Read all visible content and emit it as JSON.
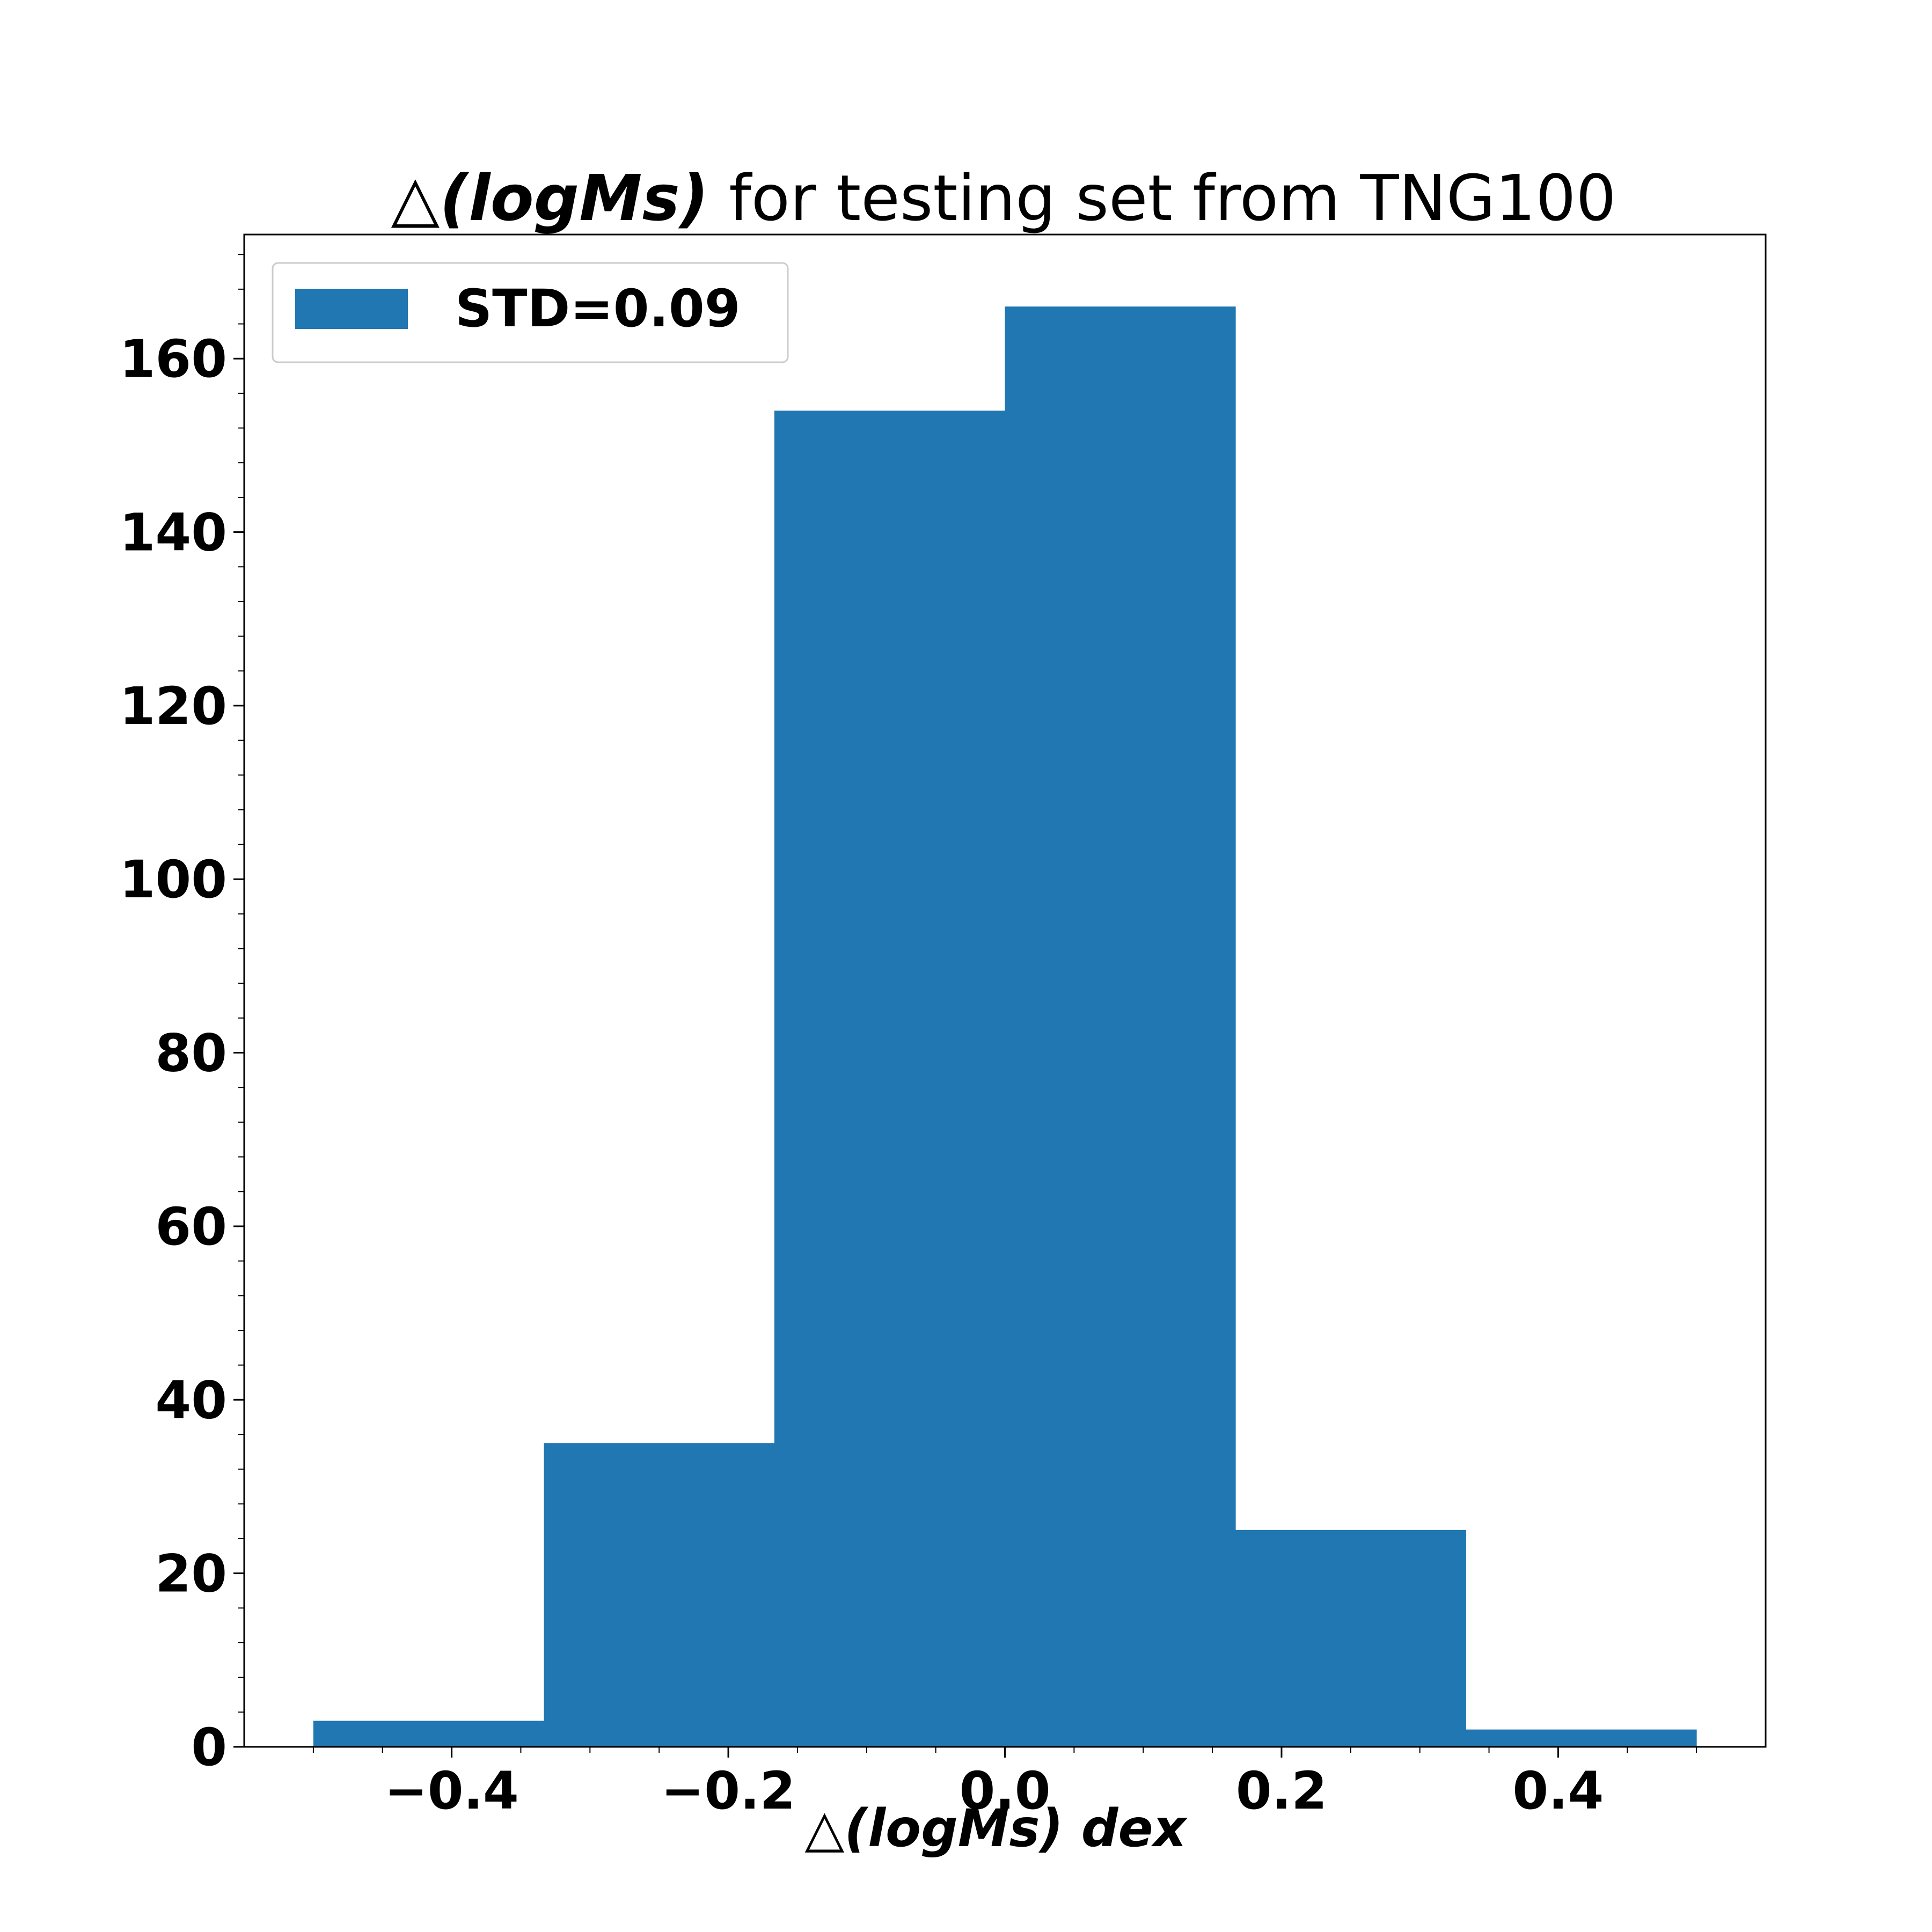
{
  "chart_data": {
    "type": "bar",
    "title": {
      "symbol": "△",
      "math": "(logMs)",
      "rest": " for testing set from TNG100"
    },
    "xlabel": {
      "symbol": "△",
      "math": "(logMs)",
      "unit": "dex"
    },
    "ylabel": "",
    "bin_edges": [
      -0.5,
      -0.3333,
      -0.1667,
      0.0,
      0.1667,
      0.3333,
      0.5
    ],
    "values": [
      3,
      35,
      154,
      166,
      25,
      2
    ],
    "xlim": [
      -0.55,
      0.55
    ],
    "ylim": [
      0,
      174.3
    ],
    "xticks": [
      -0.4,
      -0.2,
      0.0,
      0.2,
      0.4
    ],
    "xtick_labels": [
      "−0.4",
      "−0.2",
      "0.0",
      "0.2",
      "0.4"
    ],
    "yticks": [
      0,
      20,
      40,
      60,
      80,
      100,
      120,
      140,
      160
    ],
    "ytick_labels": [
      "0",
      "20",
      "40",
      "60",
      "80",
      "100",
      "120",
      "140",
      "160"
    ],
    "minor_ticks": true,
    "grid": false,
    "legend": {
      "position": "upper-left",
      "entries": [
        {
          "name": "STD=0.09",
          "color": "#2177b2"
        }
      ]
    },
    "bar_color": "#2177b2"
  }
}
